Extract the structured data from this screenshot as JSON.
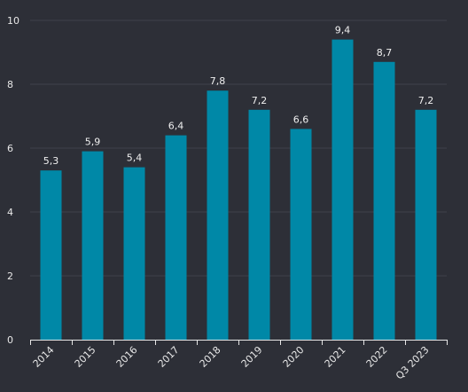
{
  "colors": {
    "background": "#2d2f37",
    "bar": "#0088a7",
    "grid": "#3f424b",
    "text": "#e8e8e8"
  },
  "chart_data": {
    "type": "bar",
    "categories": [
      "2014",
      "2015",
      "2016",
      "2017",
      "2018",
      "2019",
      "2020",
      "2021",
      "2022",
      "Q3 2023"
    ],
    "values": [
      5.3,
      5.9,
      5.4,
      6.4,
      7.8,
      7.2,
      6.6,
      9.4,
      8.7,
      7.2
    ],
    "data_labels": [
      "5,3",
      "5,9",
      "5,4",
      "6,4",
      "7,8",
      "7,2",
      "6,6",
      "9,4",
      "8,7",
      "7,2"
    ],
    "yticks": [
      0,
      2,
      4,
      6,
      8,
      10
    ],
    "ylim": [
      0,
      10
    ],
    "grid": true,
    "legend": false
  }
}
